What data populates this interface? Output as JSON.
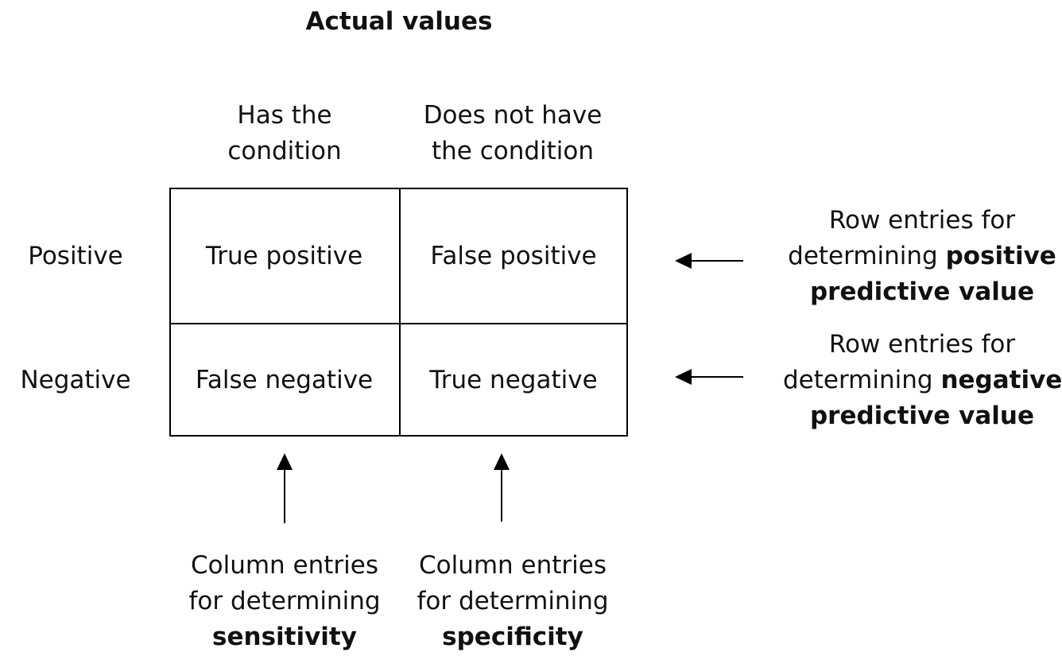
{
  "title": "Actual values",
  "columns": [
    {
      "line1": "Has the",
      "line2": "condition"
    },
    {
      "line1": "Does not have",
      "line2": "the condition"
    }
  ],
  "rows": [
    {
      "label": "Positive"
    },
    {
      "label": "Negative"
    }
  ],
  "cells": {
    "true_positive": "True positive",
    "false_positive": "False positive",
    "false_negative": "False negative",
    "true_negative": "True negative"
  },
  "row_notes": {
    "ppv": {
      "line1": "Row entries for",
      "line2_plain": "determining ",
      "line2_bold": "positive",
      "line3_bold": "predictive value"
    },
    "npv": {
      "line1": "Row entries for",
      "line2_plain": "determining ",
      "line2_bold": "negative",
      "line3_bold": "predictive value"
    }
  },
  "column_notes": {
    "sensitivity": {
      "line1": "Column entries",
      "line2": "for determining",
      "line3_bold": "sensitivity"
    },
    "specificity": {
      "line1": "Column entries",
      "line2": "for determining",
      "line3_bold": "specificity"
    }
  }
}
